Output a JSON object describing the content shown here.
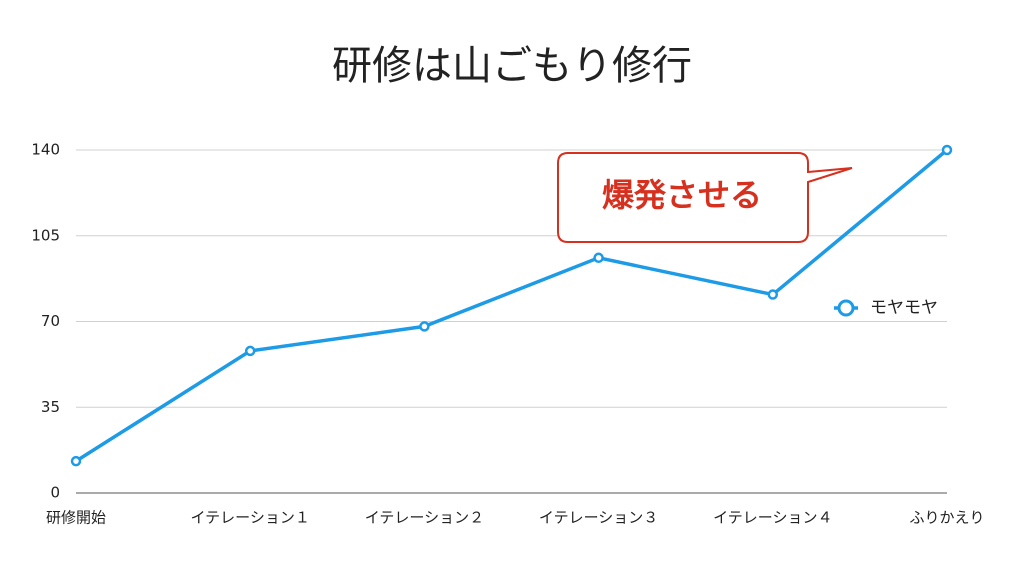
{
  "chart_data": {
    "type": "line",
    "title": "研修は山ごもり修行",
    "categories": [
      "研修開始",
      "イテレーション１",
      "イテレーション２",
      "イテレーション３",
      "イテレーション４",
      "ふりかえり"
    ],
    "series": [
      {
        "name": "モヤモヤ",
        "color": "#1e9be6",
        "values": [
          13,
          58,
          68,
          96,
          81,
          140
        ]
      }
    ],
    "ylim": [
      0,
      140
    ],
    "yticks": [
      0,
      35,
      70,
      105,
      140
    ],
    "grid": true,
    "legend": "right",
    "annotation": "爆発させる"
  }
}
